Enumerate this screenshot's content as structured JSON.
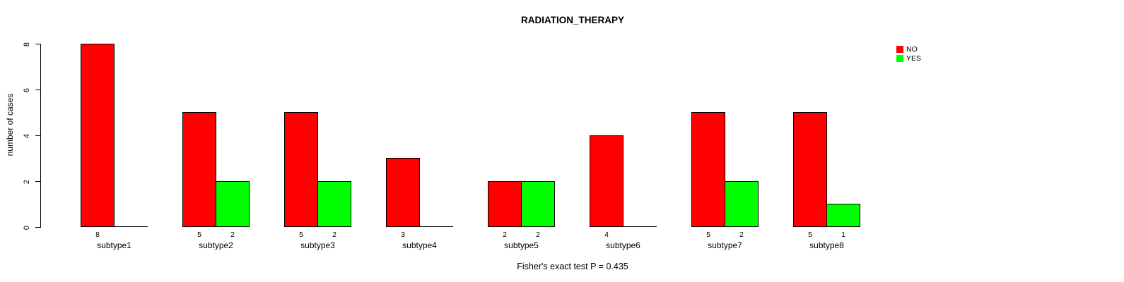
{
  "chart_data": {
    "type": "bar",
    "title": "RADIATION_THERAPY",
    "xlabel": "",
    "ylabel": "number of cases",
    "ylim": [
      0,
      8
    ],
    "yticks": [
      0,
      2,
      4,
      6,
      8
    ],
    "grid": false,
    "categories": [
      "subtype1",
      "subtype2",
      "subtype3",
      "subtype4",
      "subtype5",
      "subtype6",
      "subtype7",
      "subtype8"
    ],
    "series": [
      {
        "name": "NO",
        "color": "#ff0000",
        "values": [
          8,
          5,
          5,
          3,
          2,
          4,
          5,
          5
        ]
      },
      {
        "name": "YES",
        "color": "#00ff00",
        "values": [
          0,
          2,
          2,
          0,
          2,
          0,
          2,
          1
        ]
      }
    ],
    "value_labels_shown": true,
    "value_labels_hidden_for_zero": true,
    "legend": {
      "position": "top-right",
      "entries": [
        "NO",
        "YES"
      ]
    },
    "annotation": "Fisher's exact test P = 0.435"
  }
}
